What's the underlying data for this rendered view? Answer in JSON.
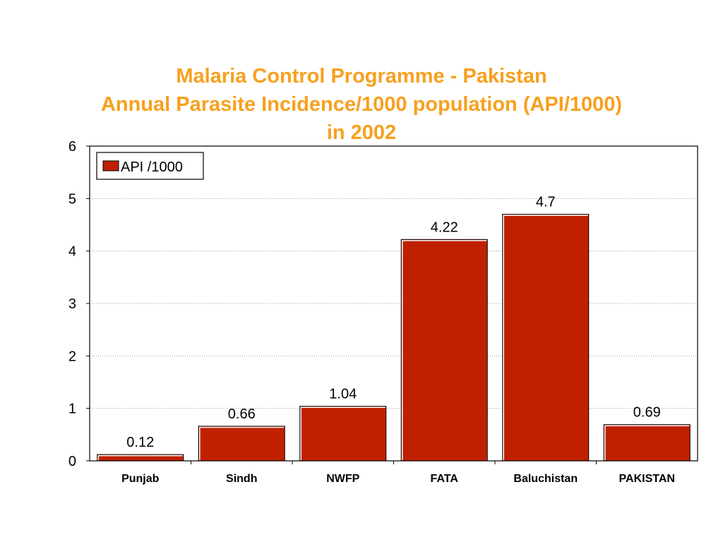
{
  "title": {
    "line1": "Malaria Control Programme - Pakistan",
    "line2": "Annual Parasite Incidence/1000 population (API/1000)",
    "line3": "in 2002"
  },
  "colors": {
    "title": "#f7a01e",
    "bar": "#bf2000",
    "gridline": "#9a9a9a"
  },
  "chart_data": {
    "type": "bar",
    "title": "Malaria Control Programme - Pakistan Annual Parasite Incidence/1000 population (API/1000) in 2002",
    "xlabel": "",
    "ylabel": "",
    "categories": [
      "Punjab",
      "Sindh",
      "NWFP",
      "FATA",
      "Baluchistan",
      "PAKISTAN"
    ],
    "series": [
      {
        "name": "API /1000",
        "values": [
          0.12,
          0.66,
          1.04,
          4.22,
          4.7,
          0.69
        ],
        "data_labels": [
          "0.12",
          "0.66",
          "1.04",
          "4.22",
          "4.7",
          "0.69"
        ]
      }
    ],
    "ylim": [
      0,
      6
    ],
    "yticks": [
      "0",
      "1",
      "2",
      "3",
      "4",
      "5",
      "6"
    ],
    "grid": "horizontal dotted",
    "legend_position": "top-left"
  }
}
